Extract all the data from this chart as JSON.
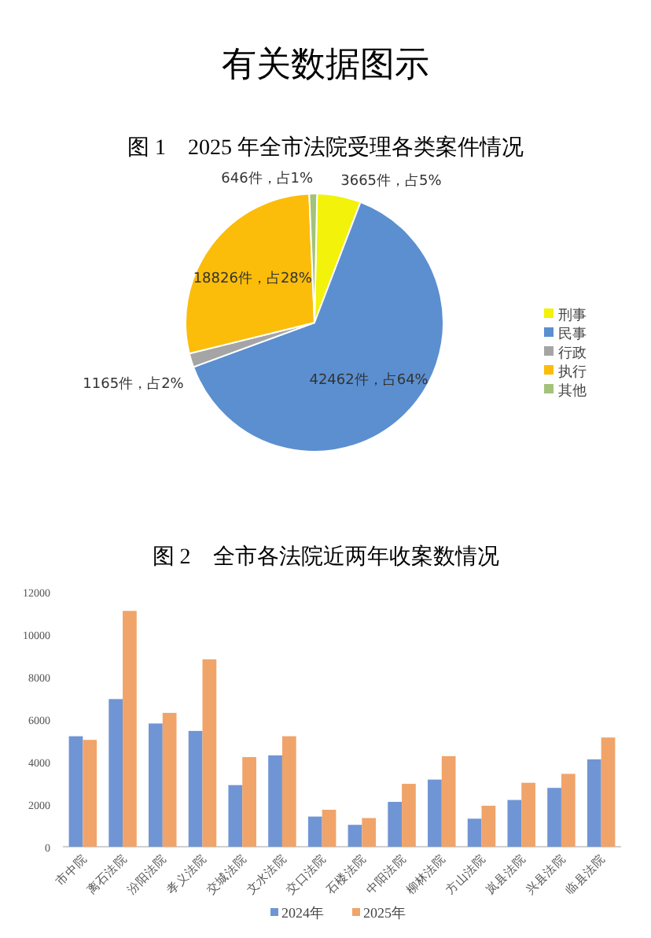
{
  "chart_data": [
    {
      "type": "pie",
      "title": "有关数据图示",
      "subtitle": "图 1　2025 年全市法院受理各类案件情况",
      "categories": [
        "刑事",
        "民事",
        "行政",
        "执行",
        "其他"
      ],
      "values": [
        3665,
        42462,
        1165,
        18826,
        646
      ],
      "value_labels": [
        "3665件，占5%",
        "42462件，占64%",
        "1165件，占2%",
        "18826件，占28%",
        "646件，占1%"
      ],
      "colors": [
        "#f2f20a",
        "#5b8fd0",
        "#a5a5a5",
        "#fbbd0a",
        "#a3c27a"
      ],
      "legend": "right"
    },
    {
      "type": "bar",
      "title": "图 2　全市各法院近两年收案数情况",
      "categories": [
        "市中院",
        "离石法院",
        "汾阳法院",
        "孝义法院",
        "交城法院",
        "文水法院",
        "交口法院",
        "石楼法院",
        "中阳法院",
        "柳林法院",
        "方山法院",
        "岚县法院",
        "兴县法院",
        "临县法院"
      ],
      "series": [
        {
          "name": "2024年",
          "color": "#7095d4",
          "values": [
            5200,
            6950,
            5800,
            5450,
            2900,
            4300,
            1420,
            1030,
            2110,
            3160,
            1320,
            2200,
            2770,
            4110
          ]
        },
        {
          "name": "2025年",
          "color": "#f0a46a",
          "values": [
            5030,
            11100,
            6300,
            8820,
            4220,
            5200,
            1740,
            1350,
            2960,
            4260,
            1930,
            3010,
            3430,
            5140
          ]
        }
      ],
      "ylim": [
        0,
        12000
      ],
      "yticks": [
        0,
        2000,
        4000,
        6000,
        8000,
        10000,
        12000
      ],
      "legend": "bottom"
    }
  ]
}
